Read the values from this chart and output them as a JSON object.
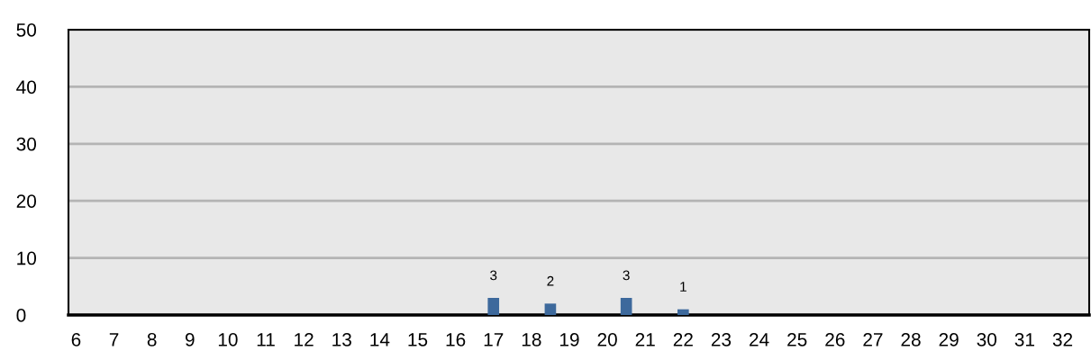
{
  "chart_data": {
    "type": "bar",
    "x": [
      17,
      18.5,
      20.5,
      22
    ],
    "values": [
      3,
      2,
      3,
      1
    ],
    "color": "#3d699c",
    "data_labels": true,
    "xlim": [
      5.8,
      32.7
    ],
    "xticks": [
      6,
      7,
      8,
      9,
      10,
      11,
      12,
      13,
      14,
      15,
      16,
      17,
      18,
      19,
      20,
      21,
      22,
      23,
      24,
      25,
      26,
      27,
      28,
      29,
      30,
      31,
      32
    ],
    "ylim": [
      0,
      50
    ],
    "yticks": [
      0,
      10,
      20,
      30,
      40,
      50
    ],
    "grid": "y"
  }
}
